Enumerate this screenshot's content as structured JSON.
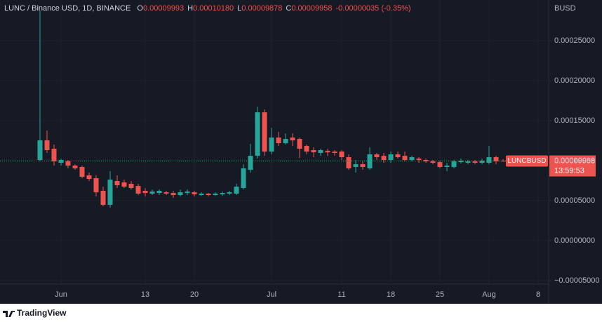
{
  "chart_data": {
    "type": "candlestick",
    "title": "LUNC / Binance USD, 1D, BINANCE",
    "ohlc_legend": [
      {
        "label": "O",
        "value": "0.00009993"
      },
      {
        "label": "H",
        "value": "0.00010180"
      },
      {
        "label": "L",
        "value": "0.00009878"
      },
      {
        "label": "C",
        "value": "0.00009958"
      }
    ],
    "change": "-0.00000035 (-0.35%)",
    "y_axis_label": "BUSD",
    "price_tag": {
      "symbol": "LUNCBUSD",
      "price": "0.00009958",
      "countdown": "13:59:53"
    },
    "up_color": "#26a69a",
    "down_color": "#ef5350",
    "grid": true,
    "categories": [
      null,
      null,
      null,
      "Jun",
      null,
      null,
      null,
      null,
      null,
      null,
      null,
      null,
      null,
      null,
      null,
      "13",
      null,
      null,
      null,
      null,
      null,
      null,
      "20",
      null,
      null,
      null,
      null,
      null,
      null,
      null,
      null,
      null,
      null,
      "Jul",
      null,
      null,
      null,
      null,
      null,
      null,
      null,
      null,
      null,
      "11",
      null,
      null,
      null,
      null,
      null,
      null,
      "18",
      null,
      null,
      null,
      null,
      null,
      null,
      "25",
      null,
      null,
      null,
      null,
      null,
      null,
      "Aug",
      null,
      null,
      null,
      null,
      null,
      null,
      "8",
      null
    ],
    "open": [
      0.0001009,
      0.0001254,
      0.0001149,
      9.74e-05,
      9.91e-05,
      9.39e-05,
      9.21e-05,
      8.16e-05,
      7.81e-05,
      6.23e-05,
      4.47e-05,
      7.46e-05,
      7.28e-05,
      7.11e-05,
      6.84e-05,
      6.23e-05,
      5.88e-05,
      5.96e-05,
      6.05e-05,
      5.96e-05,
      5.7e-05,
      5.96e-05,
      6.05e-05,
      5.7e-05,
      5.88e-05,
      5.7e-05,
      5.79e-05,
      5.88e-05,
      5.88e-05,
      6.58e-05,
      8.86e-05,
      0.0001061,
      0.0001605,
      0.0001114,
      0.0001289,
      0.0001219,
      0.0001289,
      0.0001272,
      0.0001184,
      0.0001132,
      0.0001097,
      0.0001123,
      0.0001114,
      0.0001114,
      0.0001044,
      9.21e-05,
      9.56e-05,
      9.04e-05,
      0.0001079,
      0.0001061,
      0.0001009,
      0.0001079,
      0.0001061,
      0.0001009,
      0.0001026,
      0.0001009,
      9.91e-05,
      9.82e-05,
      9.21e-05,
      9.21e-05,
      9.82e-05,
      9.74e-05,
      9.91e-05,
      9.74e-05,
      9.74e-05,
      0.0001044,
      9.993e-05,
      null,
      null,
      null,
      null,
      null,
      null
    ],
    "high": [
      0.0002877,
      0.0001377,
      0.0001202,
      0.0001026,
      0.0001009,
      9.56e-05,
      9.39e-05,
      8.51e-05,
      8.16e-05,
      6.75e-05,
      8.68e-05,
      8.16e-05,
      7.63e-05,
      7.46e-05,
      7.11e-05,
      6.58e-05,
      6.4e-05,
      6.4e-05,
      6.23e-05,
      6.23e-05,
      6.4e-05,
      6.4e-05,
      6.23e-05,
      6.05e-05,
      5.96e-05,
      6.05e-05,
      6.14e-05,
      6.23e-05,
      7.11e-05,
      9.56e-05,
      0.0001211,
      0.0001675,
      0.000164,
      0.0001412,
      0.000136,
      0.0001342,
      0.0001342,
      0.0001289,
      0.0001202,
      0.0001167,
      0.0001149,
      0.0001149,
      0.0001132,
      0.0001132,
      0.0001079,
      0.0001009,
      9.91e-05,
      0.0001167,
      0.0001097,
      0.0001097,
      0.0001114,
      0.0001114,
      0.0001114,
      0.0001061,
      0.0001044,
      0.0001026,
      0.0001009,
      0.0001,
      9.74e-05,
      0.0001009,
      0.0001026,
      0.0001009,
      0.0001009,
      0.0001026,
      0.0001184,
      0.0001061,
      0.0001018,
      null,
      null,
      null,
      null,
      null,
      null
    ],
    "low": [
      9.91e-05,
      0.0001097,
      9.39e-05,
      9.39e-05,
      9.04e-05,
      8.86e-05,
      7.81e-05,
      7.46e-05,
      5.53e-05,
      4.3e-05,
      4.12e-05,
      6.58e-05,
      6.58e-05,
      6.4e-05,
      5.7e-05,
      5.53e-05,
      5.7e-05,
      5.7e-05,
      5.7e-05,
      5.35e-05,
      5.53e-05,
      5.7e-05,
      5.53e-05,
      5.61e-05,
      5.53e-05,
      5.61e-05,
      5.61e-05,
      5.7e-05,
      5.7e-05,
      6.4e-05,
      8.51e-05,
      0.0001026,
      0.0001061,
      0.0001079,
      0.0001184,
      0.0001202,
      0.0001184,
      0.0001035,
      0.0001079,
      0.0001044,
      0.0001061,
      0.0001061,
      0.0001061,
      0.0001009,
      8.86e-05,
      8.51e-05,
      8.86e-05,
      8.86e-05,
      0.0001009,
      9.74e-05,
      9.74e-05,
      0.0001026,
      9.91e-05,
      9.91e-05,
      9.74e-05,
      9.74e-05,
      9.56e-05,
      9.04e-05,
      8.68e-05,
      9.04e-05,
      9.65e-05,
      9.56e-05,
      9.56e-05,
      9.56e-05,
      9.56e-05,
      9.56e-05,
      9.878e-05,
      null,
      null,
      null,
      null,
      null,
      null
    ],
    "close": [
      0.0001254,
      0.0001132,
      9.91e-05,
      0.0001009,
      9.39e-05,
      9.04e-05,
      7.98e-05,
      7.72e-05,
      6.05e-05,
      4.47e-05,
      7.63e-05,
      6.93e-05,
      6.75e-05,
      6.58e-05,
      5.88e-05,
      5.96e-05,
      6.14e-05,
      6.23e-05,
      5.88e-05,
      5.7e-05,
      6.05e-05,
      6.14e-05,
      5.79e-05,
      5.88e-05,
      5.7e-05,
      5.88e-05,
      5.96e-05,
      6.05e-05,
      6.75e-05,
      9.04e-05,
      0.0001061,
      0.0001605,
      0.0001114,
      0.0001289,
      0.0001219,
      0.0001272,
      0.0001254,
      0.0001149,
      0.0001114,
      0.0001105,
      0.0001132,
      0.0001105,
      0.0001097,
      0.0001044,
      9.04e-05,
      9.56e-05,
      9.21e-05,
      0.0001079,
      0.0001044,
      0.0001009,
      0.0001079,
      0.0001044,
      0.0001009,
      0.0001044,
      0.0001009,
      9.91e-05,
      9.74e-05,
      9.21e-05,
      9.39e-05,
      9.91e-05,
      0.0001,
      9.91e-05,
      9.74e-05,
      0.0001,
      0.0001044,
      9.91e-05,
      9.958e-05,
      null,
      null,
      null,
      null,
      null,
      null
    ],
    "ylim": [
      -5.44e-05,
      0.000301
    ],
    "yticks": [
      {
        "value": 0.00025,
        "label": "0.00025000"
      },
      {
        "value": 0.0002,
        "label": "0.00020000"
      },
      {
        "value": 0.00015,
        "label": "0.00015000"
      },
      {
        "value": 0.0001,
        "label": "0.00010000"
      },
      {
        "value": 5e-05,
        "label": "0.00005000"
      },
      {
        "value": 0,
        "label": "0.00000000"
      },
      {
        "value": -5e-05,
        "label": "−0.00005000"
      }
    ]
  },
  "footer": {
    "brand": "TradingView"
  }
}
